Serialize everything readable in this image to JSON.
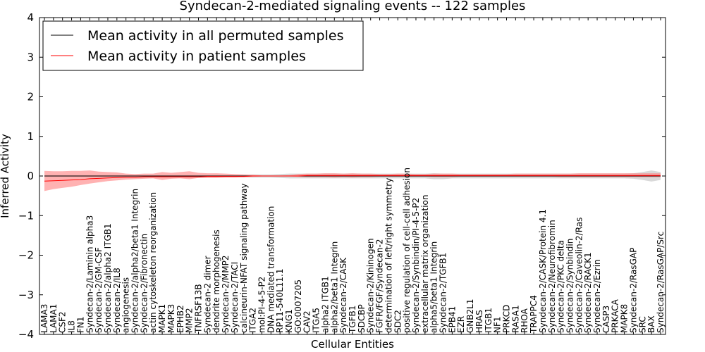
{
  "chart_data": {
    "type": "line",
    "title": "Syndecan-2-mediated signaling events -- 122 samples",
    "xlabel": "Cellular Entities",
    "ylabel": "Inferred Activity",
    "ylim": [
      -4,
      4
    ],
    "yticks": [
      -4,
      -3,
      -2,
      -1,
      0,
      1,
      2,
      3,
      4
    ],
    "legend_position": "top-left",
    "colors": {
      "permuted": "#000000",
      "patient": "#ff0000",
      "patient_band": "#ff7f7f",
      "permuted_band": "#bfbfbf"
    },
    "categories": [
      "LAMA3",
      "LAMA1",
      "CSF2",
      "IL8",
      "FN1",
      "Syndecan-2/Laminin alpha3",
      "Syndecan-2/GM-CSF",
      "Syndecan-2/alpha2 ITGB1",
      "Syndecan-2/IL8",
      "angiogenesis",
      "Syndecan-2/alpha2/beta1 Integrin",
      "Syndecan-2/Fibronectin",
      "actin cytoskeleton reorganization",
      "MAPK1",
      "MAPK3",
      "EPHB2",
      "MMP2",
      "TNFRSF13B",
      "Syndecan-2 dimer",
      "dendrite morphogenesis",
      "Syndecan-2/MMP2",
      "Syndecan-2/TACI",
      "calcineurin-NFAT signaling pathway",
      "ITGA2",
      "mol:PI-4-5-P2",
      "DNA mediated transformation",
      "RP11-540L11.1",
      "KNG1",
      "GO:0007205",
      "CAV2",
      "ITGA5",
      "alpha2 ITGB1",
      "alpha2/beta1 Integrin",
      "Syndecan-2/CASK",
      "TGFB1",
      "SDCBP",
      "Syndecan-2/Kininogen",
      "FGFR/FGF/Syndecan-2",
      "determination of left/right symmetry",
      "SDC2",
      "positive regulation of cell-cell adhesion",
      "Syndecan-2/Synbindin/PI-4-5-P2",
      "extracellular matrix organization",
      "alpha5/beta1 Integrin",
      "Syndecan-2/TGFB1",
      "EPB41",
      "EZR",
      "GNB2L1",
      "HRAS",
      "ITGB1",
      "NF1",
      "PRKCD",
      "RASA1",
      "RHOA",
      "TRAPPC4",
      "Syndecan-2/CASK/Protein 4.1",
      "Syndecan-2/Neurofibromin",
      "Syndecan-2/PKC delta",
      "Syndecan-2/Synbindin",
      "Syndecan-2/Caveolin-2/Ras",
      "Syndecan-2/RACK1",
      "Syndecan-2/Ezrin",
      "CASP3",
      "PRKACA",
      "MAPK8",
      "Syndecan-2/RasGAP",
      "SRC",
      "BAX",
      "Syndecan-2/RasGAP/Src"
    ],
    "series": [
      {
        "name": "Mean activity in all permuted samples",
        "values": [
          0,
          0,
          0,
          0,
          0,
          0,
          0,
          0,
          0,
          0,
          0,
          0,
          0,
          0,
          0,
          0,
          0,
          0,
          0,
          0,
          0,
          0,
          0,
          0,
          0,
          0,
          0,
          0,
          0,
          0,
          0,
          0,
          0,
          0,
          0,
          0,
          0,
          0,
          0,
          0,
          0,
          0,
          0,
          0,
          0,
          0,
          0,
          0,
          0,
          0,
          0,
          0,
          0,
          0,
          0,
          0,
          0,
          0,
          0,
          0,
          0,
          0,
          0,
          0,
          0,
          0,
          0,
          0,
          0
        ],
        "band_lower": [
          -0.02,
          -0.02,
          -0.02,
          -0.02,
          -0.02,
          -0.02,
          -0.02,
          -0.02,
          -0.02,
          -0.02,
          -0.02,
          -0.02,
          -0.02,
          -0.02,
          -0.02,
          -0.02,
          -0.02,
          -0.02,
          -0.02,
          -0.02,
          -0.02,
          -0.02,
          -0.03,
          -0.04,
          -0.04,
          -0.04,
          -0.05,
          -0.06,
          -0.06,
          -0.06,
          -0.06,
          -0.06,
          -0.06,
          -0.06,
          -0.06,
          -0.06,
          -0.06,
          -0.06,
          -0.06,
          -0.06,
          -0.06,
          -0.06,
          -0.06,
          -0.08,
          -0.08,
          -0.06,
          -0.06,
          -0.06,
          -0.06,
          -0.06,
          -0.06,
          -0.06,
          -0.06,
          -0.06,
          -0.06,
          -0.06,
          -0.06,
          -0.06,
          -0.06,
          -0.06,
          -0.06,
          -0.06,
          -0.06,
          -0.06,
          -0.06,
          -0.07,
          -0.1,
          -0.14,
          -0.1
        ],
        "band_upper": [
          0.02,
          0.02,
          0.02,
          0.02,
          0.02,
          0.02,
          0.02,
          0.02,
          0.02,
          0.02,
          0.02,
          0.02,
          0.02,
          0.02,
          0.02,
          0.02,
          0.02,
          0.02,
          0.02,
          0.02,
          0.02,
          0.02,
          0.03,
          0.04,
          0.04,
          0.04,
          0.05,
          0.06,
          0.06,
          0.06,
          0.06,
          0.06,
          0.06,
          0.06,
          0.06,
          0.06,
          0.06,
          0.06,
          0.06,
          0.06,
          0.06,
          0.06,
          0.06,
          0.07,
          0.06,
          0.06,
          0.06,
          0.06,
          0.06,
          0.06,
          0.06,
          0.06,
          0.06,
          0.06,
          0.06,
          0.06,
          0.06,
          0.06,
          0.06,
          0.06,
          0.06,
          0.06,
          0.06,
          0.06,
          0.06,
          0.07,
          0.1,
          0.14,
          0.1
        ]
      },
      {
        "name": "Mean activity in patient samples",
        "values": [
          -0.13,
          -0.12,
          -0.11,
          -0.1,
          -0.09,
          -0.07,
          -0.06,
          -0.05,
          -0.04,
          -0.03,
          -0.03,
          -0.02,
          -0.02,
          -0.02,
          -0.02,
          -0.02,
          -0.02,
          -0.02,
          -0.01,
          -0.01,
          -0.01,
          -0.01,
          -0.01,
          0,
          0,
          0,
          0,
          0,
          0,
          0.01,
          0.01,
          0.01,
          0.01,
          0.01,
          0.01,
          0.01,
          0.01,
          0.01,
          0.01,
          0.01,
          0.01,
          0.01,
          0.01,
          0.01,
          0.01,
          0.01,
          0.01,
          0.01,
          0.01,
          0.01,
          0.01,
          0.01,
          0.01,
          0.01,
          0.01,
          0.01,
          0.01,
          0.01,
          0.01,
          0.01,
          0.01,
          0.01,
          0.01,
          0.01,
          0.01,
          0.01,
          0.01,
          0.01,
          0.01
        ],
        "band_lower": [
          -0.38,
          -0.33,
          -0.3,
          -0.27,
          -0.23,
          -0.19,
          -0.16,
          -0.13,
          -0.11,
          -0.09,
          -0.08,
          -0.07,
          -0.06,
          -0.1,
          -0.07,
          -0.06,
          -0.08,
          -0.05,
          -0.05,
          -0.05,
          -0.04,
          -0.04,
          -0.03,
          -0.02,
          -0.01,
          -0.01,
          -0.01,
          -0.01,
          -0.02,
          -0.03,
          -0.03,
          -0.03,
          -0.04,
          -0.03,
          -0.04,
          -0.03,
          -0.03,
          -0.02,
          -0.02,
          -0.02,
          -0.02,
          -0.02,
          -0.02,
          -0.03,
          -0.03,
          -0.03,
          -0.02,
          -0.02,
          -0.02,
          -0.02,
          -0.02,
          -0.02,
          -0.02,
          -0.02,
          -0.02,
          -0.02,
          -0.02,
          -0.03,
          -0.03,
          -0.03,
          -0.03,
          -0.03,
          -0.03,
          -0.03,
          -0.03,
          -0.03,
          -0.03,
          -0.03,
          -0.03
        ],
        "band_upper": [
          0.13,
          0.12,
          0.12,
          0.13,
          0.13,
          0.14,
          0.11,
          0.1,
          0.09,
          0.06,
          0.05,
          0.06,
          0.06,
          0.1,
          0.08,
          0.1,
          0.12,
          0.08,
          0.07,
          0.07,
          0.06,
          0.05,
          0.04,
          0.03,
          0.01,
          0.01,
          0.01,
          0.02,
          0.05,
          0.06,
          0.06,
          0.07,
          0.07,
          0.06,
          0.07,
          0.06,
          0.06,
          0.05,
          0.05,
          0.06,
          0.06,
          0.05,
          0.05,
          0.06,
          0.06,
          0.06,
          0.05,
          0.05,
          0.05,
          0.05,
          0.05,
          0.05,
          0.06,
          0.06,
          0.06,
          0.06,
          0.06,
          0.06,
          0.06,
          0.07,
          0.07,
          0.07,
          0.07,
          0.07,
          0.07,
          0.07,
          0.07,
          0.07,
          0.07
        ]
      }
    ]
  }
}
